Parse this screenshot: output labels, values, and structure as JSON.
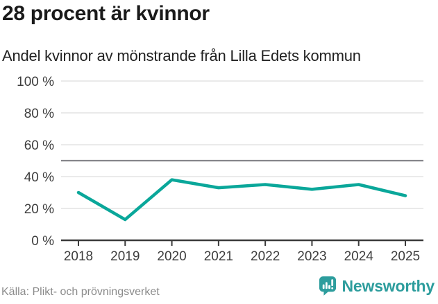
{
  "header": {
    "title": "28 procent är kvinnor",
    "subtitle": "Andel kvinnor av mönstrande från Lilla Edets kommun"
  },
  "chart_data": {
    "type": "line",
    "title": "28 procent är kvinnor",
    "subtitle": "Andel kvinnor av mönstrande från Lilla Edets kommun",
    "x": [
      "2018",
      "2019",
      "2020",
      "2021",
      "2022",
      "2023",
      "2024",
      "2025"
    ],
    "series": [
      {
        "name": "Andel kvinnor av mönstrande",
        "values": [
          30,
          13,
          38,
          33,
          35,
          32,
          35,
          28
        ]
      }
    ],
    "unit": "%",
    "xlabel": "",
    "ylabel": "",
    "ylim": [
      0,
      100
    ],
    "yticks": [
      0,
      20,
      40,
      60,
      80,
      100
    ],
    "ytick_suffix": " %",
    "reference_line": 50,
    "grid": true,
    "legend": "none",
    "colors": {
      "line": "#0aa79a",
      "grid": "#e4e4e4",
      "reference": "#85858a",
      "axis": "#3a3a3a",
      "tick_text": "#3d3d3d"
    }
  },
  "footer": {
    "source": "Källa: Plikt- och prövningsverket",
    "brand": "Newsworthy",
    "brand_color": "#2d9d9d"
  }
}
